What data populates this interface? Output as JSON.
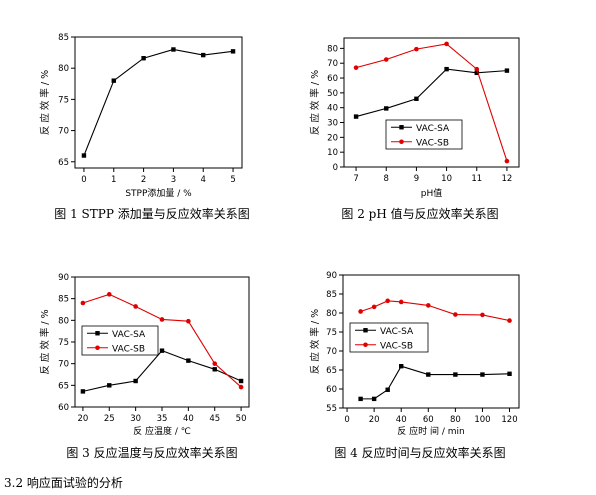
{
  "section_heading": "3.2 响应面试验的分析",
  "colors": {
    "black_series": "#000000",
    "red_series": "#e00000"
  },
  "chart_data": [
    {
      "type": "line",
      "caption": "图 1 STPP 添加量与反应效率关系图",
      "xlabel": "STPP添加量 / %",
      "ylabel": "反 应 效 率 / %",
      "x_ticks": [
        "0",
        "1",
        "2",
        "3",
        "4",
        "5"
      ],
      "y_ticks": [
        "65",
        "70",
        "75",
        "80",
        "85"
      ],
      "xlim": [
        -0.3,
        5.3
      ],
      "ylim": [
        64,
        85
      ],
      "legend": null,
      "series": [
        {
          "name": "",
          "color": "#000000",
          "marker": "square",
          "x": [
            0,
            1,
            2,
            3,
            4,
            5
          ],
          "y": [
            66,
            78,
            81.6,
            83,
            82.1,
            82.7
          ]
        }
      ]
    },
    {
      "type": "line",
      "caption": "图 2 pH 值与反应效率关系图",
      "xlabel": "pH值",
      "ylabel": "反 应 效 率 / %",
      "x_ticks": [
        "7",
        "8",
        "9",
        "10",
        "11",
        "12"
      ],
      "y_ticks": [
        "0",
        "10",
        "20",
        "30",
        "40",
        "50",
        "60",
        "70",
        "80"
      ],
      "xlim": [
        6.6,
        12.4
      ],
      "ylim": [
        0,
        87
      ],
      "legend": "center-left",
      "series": [
        {
          "name": "VAC-SA",
          "color": "#000000",
          "marker": "square",
          "x": [
            7,
            8,
            9,
            10,
            11,
            12
          ],
          "y": [
            34,
            39.5,
            46,
            66,
            63.5,
            65
          ]
        },
        {
          "name": "VAC-SB",
          "color": "#e00000",
          "marker": "circle",
          "x": [
            7,
            8,
            9,
            10,
            11,
            12
          ],
          "y": [
            67,
            72.5,
            79.5,
            83,
            66,
            4
          ]
        }
      ]
    },
    {
      "type": "line",
      "caption": "图 3 反应温度与反应效率关系图",
      "xlabel": "反 应温度 / ℃",
      "ylabel": "反 应 效 率 / %",
      "x_ticks": [
        "20",
        "25",
        "30",
        "35",
        "40",
        "45",
        "50"
      ],
      "y_ticks": [
        "60",
        "65",
        "70",
        "75",
        "80",
        "85",
        "90"
      ],
      "xlim": [
        18.5,
        51.5
      ],
      "ylim": [
        60,
        90
      ],
      "legend": "center-left",
      "series": [
        {
          "name": "VAC-SA",
          "color": "#000000",
          "marker": "square",
          "x": [
            20,
            25,
            30,
            35,
            40,
            45,
            50
          ],
          "y": [
            63.6,
            65,
            66,
            73,
            70.7,
            68.7,
            66
          ]
        },
        {
          "name": "VAC-SB",
          "color": "#e00000",
          "marker": "circle",
          "x": [
            20,
            25,
            30,
            35,
            40,
            45,
            50
          ],
          "y": [
            84,
            86,
            83.2,
            80.2,
            79.8,
            70,
            64.6
          ]
        }
      ]
    },
    {
      "type": "line",
      "caption": "图 4 反应时间与反应效率关系图",
      "xlabel": "反 应时 间 / min",
      "ylabel": "反 应 效 率 / %",
      "x_ticks": [
        "0",
        "20",
        "40",
        "60",
        "80",
        "100",
        "120"
      ],
      "y_ticks": [
        "55",
        "60",
        "65",
        "70",
        "75",
        "80",
        "85",
        "90"
      ],
      "xlim": [
        -3,
        127
      ],
      "ylim": [
        55,
        90
      ],
      "legend": "center-left",
      "series": [
        {
          "name": "VAC-SA",
          "color": "#000000",
          "marker": "square",
          "x": [
            10,
            20,
            30,
            40,
            60,
            80,
            100,
            120
          ],
          "y": [
            57.4,
            57.4,
            59.8,
            66,
            63.8,
            63.8,
            63.8,
            64
          ]
        },
        {
          "name": "VAC-SB",
          "color": "#e00000",
          "marker": "circle",
          "x": [
            10,
            20,
            30,
            40,
            60,
            80,
            100,
            120
          ],
          "y": [
            80.4,
            81.6,
            83.2,
            82.9,
            82,
            79.6,
            79.5,
            78
          ]
        }
      ]
    }
  ]
}
